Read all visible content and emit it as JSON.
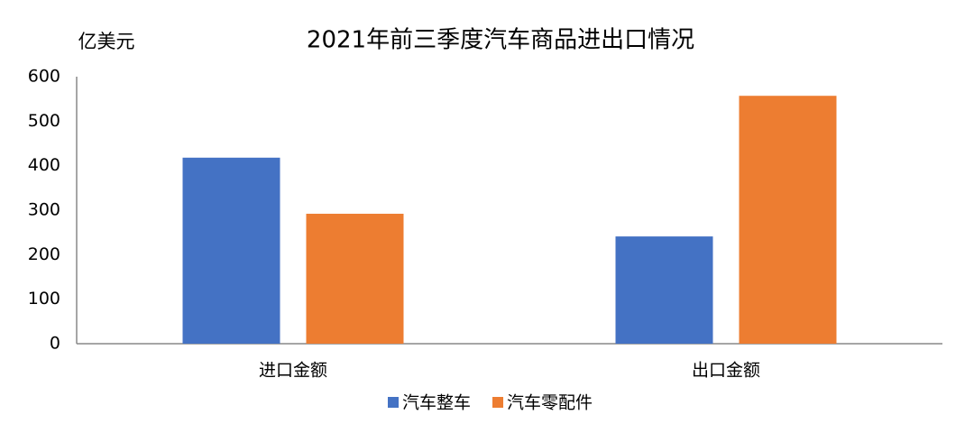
{
  "chart_data": {
    "type": "bar",
    "title": "2021年前三季度汽车商品进出口情况",
    "y_label": "亿美元",
    "categories": [
      "进口金额",
      "出口金额"
    ],
    "series": [
      {
        "name": "汽车整车",
        "color": "#4472c4",
        "values": [
          418,
          241
        ]
      },
      {
        "name": "汽车零配件",
        "color": "#ed7d31",
        "values": [
          292,
          557
        ]
      }
    ],
    "ylim": [
      0,
      600
    ],
    "yticks": [
      0,
      100,
      200,
      300,
      400,
      500,
      600
    ],
    "grid": false,
    "legend": "bottom"
  }
}
